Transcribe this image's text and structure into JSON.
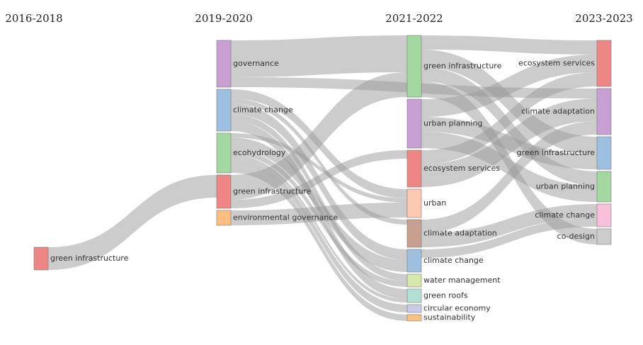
{
  "chart_data": {
    "type": "sankey",
    "columns": [
      "2016-2018",
      "2019-2020",
      "2021-2022",
      "2023-2023"
    ],
    "nodes": [
      {
        "label": "green infrastructure",
        "color": "#ee8686",
        "column": 0
      },
      {
        "label": "governance",
        "color": "#c9a0d4",
        "column": 1
      },
      {
        "label": "climate change",
        "color": "#9dbfe0",
        "column": 1
      },
      {
        "label": "ecohydrology",
        "color": "#a3d9a0",
        "column": 1
      },
      {
        "label": "green infrastructure",
        "color": "#ee8686",
        "column": 1
      },
      {
        "label": "environmental governance",
        "color": "#fdbf80",
        "column": 1
      },
      {
        "label": "green infrastructure",
        "color": "#a3d9a0",
        "column": 2
      },
      {
        "label": "urban planning",
        "color": "#c9a0d4",
        "column": 2
      },
      {
        "label": "ecosystem services",
        "color": "#ee8686",
        "column": 2
      },
      {
        "label": "urban",
        "color": "#fcc9b0",
        "column": 2
      },
      {
        "label": "climate adaptation",
        "color": "#c8a090",
        "column": 2
      },
      {
        "label": "climate change",
        "color": "#9dbfe0",
        "column": 2
      },
      {
        "label": "water management",
        "color": "#d6e9a8",
        "column": 2
      },
      {
        "label": "green roofs",
        "color": "#b2e0d4",
        "column": 2
      },
      {
        "label": "circular economy",
        "color": "#c8cce6",
        "column": 2
      },
      {
        "label": "sustainability",
        "color": "#fdbf80",
        "column": 2
      },
      {
        "label": "ecosystem services",
        "color": "#ee8686",
        "column": 3
      },
      {
        "label": "climate adaptation",
        "color": "#c9a0d4",
        "column": 3
      },
      {
        "label": "green infrastructure",
        "color": "#9dbfe0",
        "column": 3
      },
      {
        "label": "urban planning",
        "color": "#a3d9a0",
        "column": 3
      },
      {
        "label": "climate change",
        "color": "#f9c0dc",
        "column": 3
      },
      {
        "label": "co-design",
        "color": "#cccccc",
        "column": 3
      }
    ],
    "links": [
      {
        "source": 0,
        "target": 4,
        "value": 32
      },
      {
        "source": 1,
        "target": 6,
        "value": 52
      },
      {
        "source": 1,
        "target": 17,
        "value": 14
      },
      {
        "source": 2,
        "target": 9,
        "value": 13
      },
      {
        "source": 2,
        "target": 10,
        "value": 7
      },
      {
        "source": 2,
        "target": 11,
        "value": 15
      },
      {
        "source": 2,
        "target": 12,
        "value": 10
      },
      {
        "source": 2,
        "target": 13,
        "value": 14
      },
      {
        "source": 3,
        "target": 9,
        "value": 6
      },
      {
        "source": 3,
        "target": 11,
        "value": 17
      },
      {
        "source": 3,
        "target": 12,
        "value": 8
      },
      {
        "source": 3,
        "target": 13,
        "value": 5
      },
      {
        "source": 3,
        "target": 14,
        "value": 11
      },
      {
        "source": 3,
        "target": 15,
        "value": 9
      },
      {
        "source": 4,
        "target": 6,
        "value": 35
      },
      {
        "source": 4,
        "target": 8,
        "value": 12
      },
      {
        "source": 5,
        "target": 9,
        "value": 21
      },
      {
        "source": 6,
        "target": 16,
        "value": 20
      },
      {
        "source": 6,
        "target": 18,
        "value": 25
      },
      {
        "source": 6,
        "target": 19,
        "value": 20
      },
      {
        "source": 6,
        "target": 21,
        "value": 22
      },
      {
        "source": 7,
        "target": 16,
        "value": 25
      },
      {
        "source": 7,
        "target": 18,
        "value": 21
      },
      {
        "source": 7,
        "target": 19,
        "value": 23
      },
      {
        "source": 8,
        "target": 16,
        "value": 20
      },
      {
        "source": 8,
        "target": 17,
        "value": 32
      },
      {
        "source": 10,
        "target": 17,
        "value": 19
      },
      {
        "source": 10,
        "target": 20,
        "value": 20
      },
      {
        "source": 11,
        "target": 20,
        "value": 12
      }
    ]
  }
}
